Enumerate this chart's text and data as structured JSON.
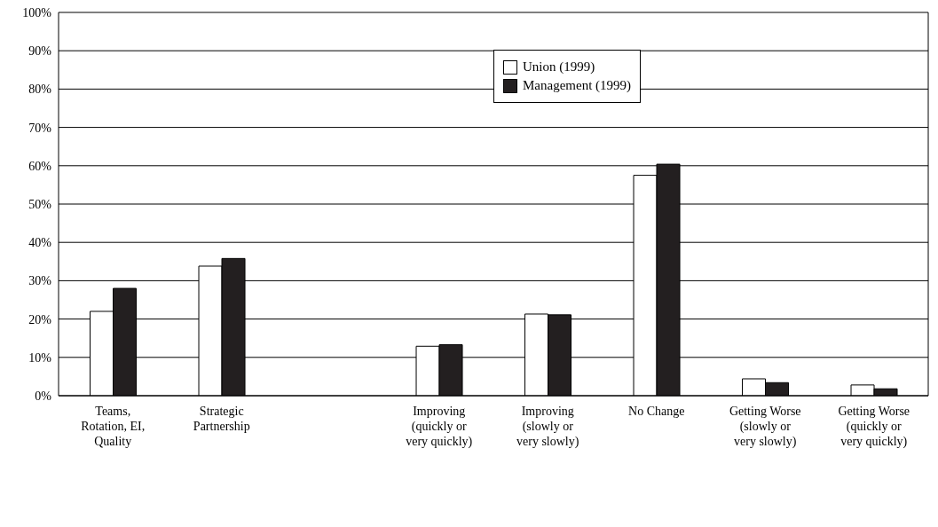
{
  "chart_data": {
    "type": "bar",
    "categories": [
      "Teams, Rotation, EI, Quality",
      "Strategic Partnership",
      null,
      "Improving (quickly or very quickly)",
      "Improving (slowly or very slowly)",
      "No Change",
      "Getting Worse (slowly or very slowly)",
      "Getting Worse (quickly or very quickly)"
    ],
    "series": [
      {
        "name": "Union (1999)",
        "color": "#ffffff",
        "values": [
          22,
          33.8,
          null,
          12.9,
          21.3,
          57.5,
          4.4,
          2.8
        ]
      },
      {
        "name": "Management (1999)",
        "color": "#231f20",
        "values": [
          28,
          35.8,
          null,
          13.3,
          21.1,
          60.4,
          3.4,
          1.8
        ]
      }
    ],
    "ylim": [
      0,
      100
    ],
    "yticks": [
      {
        "value": 0,
        "label": "0%"
      },
      {
        "value": 10,
        "label": "10%"
      },
      {
        "value": 20,
        "label": "20%"
      },
      {
        "value": 30,
        "label": "30%"
      },
      {
        "value": 40,
        "label": "40%"
      },
      {
        "value": 50,
        "label": "50%"
      },
      {
        "value": 60,
        "label": "60%"
      },
      {
        "value": 70,
        "label": "70%"
      },
      {
        "value": 80,
        "label": "80%"
      },
      {
        "value": 90,
        "label": "90%"
      },
      {
        "value": 100,
        "label": "100%"
      }
    ],
    "grid": "y",
    "legend": "top"
  }
}
